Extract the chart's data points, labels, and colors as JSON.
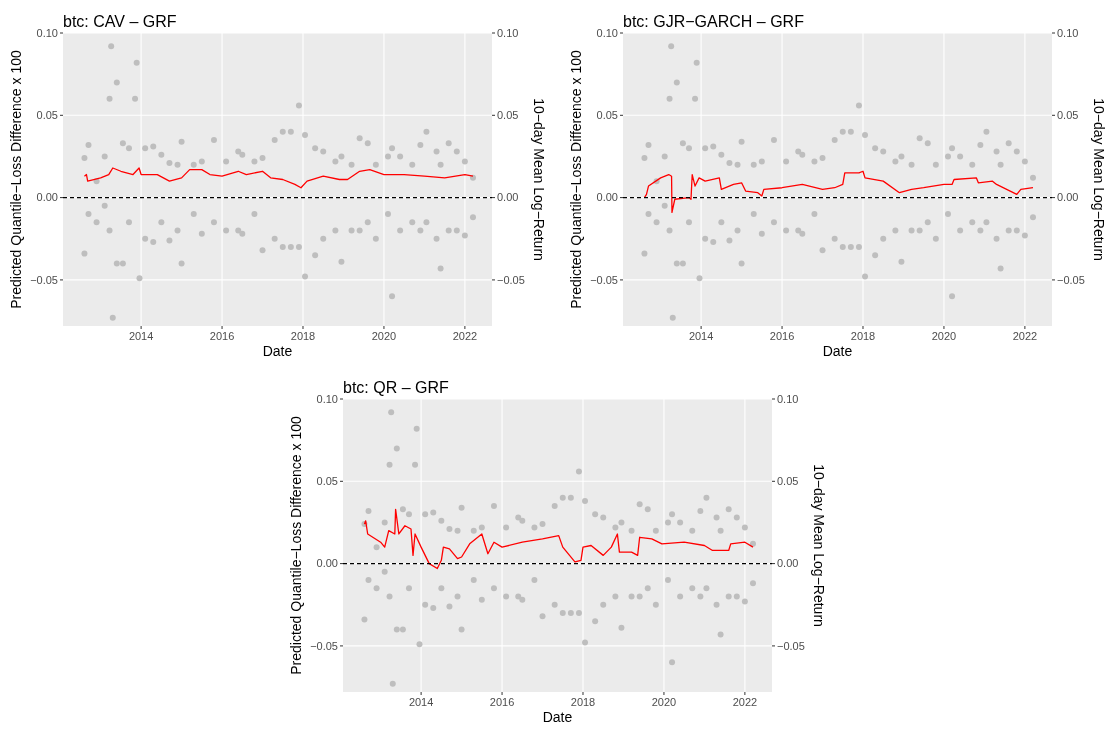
{
  "chart_data": [
    {
      "type": "line",
      "title": "btc: CAV – GRF",
      "xlabel": "Date",
      "ylabel": "Predicted Quantile−Loss Difference x 100",
      "y2label": "10−day Mean Log−Return",
      "xlim": [
        2012.07,
        2022.67
      ],
      "xticks": [
        2014,
        2016,
        2018,
        2020,
        2022
      ],
      "ylim": [
        -0.078,
        0.1
      ],
      "yticks": [
        {
          "value": -0.05,
          "label": "−0.05"
        },
        {
          "value": 0,
          "label": "0.00"
        },
        {
          "value": 0.05,
          "label": "0.05"
        },
        {
          "value": 0.1,
          "label": "0.10"
        }
      ],
      "y2lim": [
        -0.078,
        0.1
      ],
      "y2ticks": [
        {
          "value": -0.05,
          "label": "−0.05"
        },
        {
          "value": 0,
          "label": "0.00"
        },
        {
          "value": 0.05,
          "label": "0.05"
        },
        {
          "value": 0.1,
          "label": "0.10"
        }
      ],
      "grid": true,
      "ref_lines": [
        {
          "axis": "y",
          "value": 0,
          "color": "#000000",
          "line_style": "dashed"
        }
      ],
      "series": [
        {
          "type": "scatter",
          "marker": "circle",
          "color": "#bebebe",
          "x": [
            2012.6,
            2012.6,
            2012.7,
            2012.7,
            2012.9,
            2012.9,
            2013.1,
            2013.1,
            2013.22,
            2013.22,
            2013.26,
            2013.3,
            2013.4,
            2013.4,
            2013.55,
            2013.55,
            2013.7,
            2013.7,
            2013.85,
            2013.89,
            2013.96,
            2014.1,
            2014.1,
            2014.3,
            2014.3,
            2014.5,
            2014.5,
            2014.7,
            2014.7,
            2014.9,
            2014.9,
            2015.0,
            2015.0,
            2015.3,
            2015.3,
            2015.5,
            2015.5,
            2015.8,
            2015.8,
            2016.1,
            2016.1,
            2016.4,
            2016.4,
            2016.5,
            2016.5,
            2016.8,
            2016.8,
            2017.0,
            2017.0,
            2017.3,
            2017.3,
            2017.5,
            2017.5,
            2017.7,
            2017.7,
            2017.9,
            2017.9,
            2018.05,
            2018.05,
            2018.3,
            2018.3,
            2018.5,
            2018.5,
            2018.8,
            2018.8,
            2018.95,
            2018.95,
            2019.2,
            2019.2,
            2019.4,
            2019.4,
            2019.6,
            2019.6,
            2019.8,
            2019.8,
            2020.1,
            2020.1,
            2020.2,
            2020.2,
            2020.4,
            2020.4,
            2020.7,
            2020.7,
            2020.9,
            2020.9,
            2021.05,
            2021.05,
            2021.3,
            2021.3,
            2021.4,
            2021.4,
            2021.6,
            2021.6,
            2021.8,
            2021.8,
            2022.0,
            2022.0,
            2022.2,
            2022.2
          ],
          "values": [
            0.024,
            -0.034,
            0.032,
            -0.01,
            0.01,
            -0.015,
            0.025,
            -0.005,
            0.06,
            -0.02,
            0.092,
            -0.073,
            0.07,
            -0.04,
            0.033,
            -0.04,
            0.03,
            -0.015,
            0.06,
            0.082,
            -0.049,
            0.03,
            -0.025,
            0.031,
            -0.027,
            0.026,
            -0.015,
            0.021,
            -0.026,
            0.02,
            -0.02,
            0.034,
            -0.04,
            0.02,
            -0.01,
            0.022,
            -0.022,
            0.035,
            -0.015,
            0.022,
            -0.02,
            0.028,
            -0.02,
            0.026,
            -0.022,
            0.022,
            -0.01,
            0.024,
            -0.032,
            0.035,
            -0.025,
            0.04,
            -0.03,
            0.04,
            -0.03,
            0.056,
            -0.03,
            0.038,
            -0.048,
            0.03,
            -0.035,
            0.028,
            -0.025,
            0.022,
            -0.02,
            0.025,
            -0.039,
            0.02,
            -0.02,
            0.036,
            -0.02,
            0.033,
            -0.015,
            0.02,
            -0.025,
            0.025,
            -0.01,
            0.03,
            -0.06,
            0.025,
            -0.02,
            0.02,
            -0.015,
            0.032,
            -0.02,
            0.04,
            -0.015,
            0.028,
            -0.025,
            0.02,
            -0.043,
            0.033,
            -0.02,
            0.028,
            -0.02,
            0.022,
            -0.023,
            0.012,
            -0.012
          ]
        },
        {
          "color": "#ff0000",
          "x": [
            2012.6,
            2012.65,
            2012.68,
            2013.0,
            2013.2,
            2013.3,
            2013.5,
            2013.8,
            2013.95,
            2014.0,
            2014.4,
            2014.7,
            2015.0,
            2015.2,
            2015.5,
            2015.7,
            2016.0,
            2016.4,
            2016.6,
            2017.0,
            2017.2,
            2017.5,
            2017.8,
            2017.95,
            2018.1,
            2018.5,
            2018.9,
            2019.1,
            2019.4,
            2019.65,
            2020.0,
            2020.5,
            2021.0,
            2021.5,
            2022.0,
            2022.2
          ],
          "values": [
            0.013,
            0.014,
            0.01,
            0.012,
            0.014,
            0.018,
            0.016,
            0.014,
            0.018,
            0.014,
            0.014,
            0.01,
            0.012,
            0.017,
            0.017,
            0.014,
            0.013,
            0.016,
            0.014,
            0.016,
            0.012,
            0.011,
            0.008,
            0.006,
            0.01,
            0.013,
            0.011,
            0.011,
            0.016,
            0.017,
            0.014,
            0.014,
            0.013,
            0.012,
            0.014,
            0.013
          ]
        }
      ]
    },
    {
      "type": "line",
      "title": "btc: GJR−GARCH – GRF",
      "xlabel": "Date",
      "ylabel": "Predicted Quantile−Loss Difference x 100",
      "y2label": "10−day Mean Log−Return",
      "xlim": [
        2012.07,
        2022.67
      ],
      "xticks": [
        2014,
        2016,
        2018,
        2020,
        2022
      ],
      "ylim": [
        -0.078,
        0.1
      ],
      "yticks": [
        {
          "value": -0.05,
          "label": "−0.05"
        },
        {
          "value": 0,
          "label": "0.00"
        },
        {
          "value": 0.05,
          "label": "0.05"
        },
        {
          "value": 0.1,
          "label": "0.10"
        }
      ],
      "y2lim": [
        -0.078,
        0.1
      ],
      "y2ticks": [
        {
          "value": -0.05,
          "label": "−0.05"
        },
        {
          "value": 0,
          "label": "0.00"
        },
        {
          "value": 0.05,
          "label": "0.05"
        },
        {
          "value": 0.1,
          "label": "0.10"
        }
      ],
      "grid": true,
      "ref_lines": [
        {
          "axis": "y",
          "value": 0,
          "color": "#000000",
          "line_style": "dashed"
        }
      ],
      "series": [
        {
          "type": "scatter",
          "color": "#bebebe",
          "x": [
            2012.6,
            2012.6,
            2012.7,
            2012.7,
            2012.9,
            2012.9,
            2013.1,
            2013.1,
            2013.22,
            2013.22,
            2013.26,
            2013.3,
            2013.4,
            2013.4,
            2013.55,
            2013.55,
            2013.7,
            2013.7,
            2013.85,
            2013.89,
            2013.96,
            2014.1,
            2014.1,
            2014.3,
            2014.3,
            2014.5,
            2014.5,
            2014.7,
            2014.7,
            2014.9,
            2014.9,
            2015.0,
            2015.0,
            2015.3,
            2015.3,
            2015.5,
            2015.5,
            2015.8,
            2015.8,
            2016.1,
            2016.1,
            2016.4,
            2016.4,
            2016.5,
            2016.5,
            2016.8,
            2016.8,
            2017.0,
            2017.0,
            2017.3,
            2017.3,
            2017.5,
            2017.5,
            2017.7,
            2017.7,
            2017.9,
            2017.9,
            2018.05,
            2018.05,
            2018.3,
            2018.3,
            2018.5,
            2018.5,
            2018.8,
            2018.8,
            2018.95,
            2018.95,
            2019.2,
            2019.2,
            2019.4,
            2019.4,
            2019.6,
            2019.6,
            2019.8,
            2019.8,
            2020.1,
            2020.1,
            2020.2,
            2020.2,
            2020.4,
            2020.4,
            2020.7,
            2020.7,
            2020.9,
            2020.9,
            2021.05,
            2021.05,
            2021.3,
            2021.3,
            2021.4,
            2021.4,
            2021.6,
            2021.6,
            2021.8,
            2021.8,
            2022.0,
            2022.0,
            2022.2,
            2022.2
          ],
          "values": [
            0.024,
            -0.034,
            0.032,
            -0.01,
            0.01,
            -0.015,
            0.025,
            -0.005,
            0.06,
            -0.02,
            0.092,
            -0.073,
            0.07,
            -0.04,
            0.033,
            -0.04,
            0.03,
            -0.015,
            0.06,
            0.082,
            -0.049,
            0.03,
            -0.025,
            0.031,
            -0.027,
            0.026,
            -0.015,
            0.021,
            -0.026,
            0.02,
            -0.02,
            0.034,
            -0.04,
            0.02,
            -0.01,
            0.022,
            -0.022,
            0.035,
            -0.015,
            0.022,
            -0.02,
            0.028,
            -0.02,
            0.026,
            -0.022,
            0.022,
            -0.01,
            0.024,
            -0.032,
            0.035,
            -0.025,
            0.04,
            -0.03,
            0.04,
            -0.03,
            0.056,
            -0.03,
            0.038,
            -0.048,
            0.03,
            -0.035,
            0.028,
            -0.025,
            0.022,
            -0.02,
            0.025,
            -0.039,
            0.02,
            -0.02,
            0.036,
            -0.02,
            0.033,
            -0.015,
            0.02,
            -0.025,
            0.025,
            -0.01,
            0.03,
            -0.06,
            0.025,
            -0.02,
            0.02,
            -0.015,
            0.032,
            -0.02,
            0.04,
            -0.015,
            0.028,
            -0.025,
            0.02,
            -0.043,
            0.033,
            -0.02,
            0.028,
            -0.02,
            0.022,
            -0.023,
            0.012,
            -0.012
          ]
        },
        {
          "color": "#ff0000",
          "x": [
            2012.6,
            2012.65,
            2012.7,
            2013.0,
            2013.2,
            2013.27,
            2013.28,
            2013.35,
            2013.7,
            2013.75,
            2013.78,
            2013.85,
            2013.95,
            2014.1,
            2014.45,
            2014.5,
            2014.8,
            2015.0,
            2015.1,
            2015.4,
            2015.5,
            2015.55,
            2016.0,
            2016.5,
            2017.0,
            2017.3,
            2017.5,
            2017.55,
            2017.9,
            2018.0,
            2018.05,
            2018.5,
            2018.9,
            2019.2,
            2019.5,
            2020.0,
            2020.2,
            2020.25,
            2020.8,
            2020.85,
            2021.2,
            2021.3,
            2021.8,
            2021.9,
            2022.2
          ],
          "values": [
            0.0,
            0.002,
            0.007,
            0.012,
            0.014,
            0.013,
            -0.009,
            -0.001,
            0.0,
            -0.001,
            0.014,
            0.007,
            0.012,
            0.01,
            0.012,
            0.005,
            0.008,
            0.009,
            0.004,
            0.003,
            0.001,
            0.005,
            0.006,
            0.008,
            0.005,
            0.006,
            0.008,
            0.015,
            0.015,
            0.016,
            0.012,
            0.01,
            0.003,
            0.005,
            0.006,
            0.008,
            0.008,
            0.011,
            0.012,
            0.009,
            0.01,
            0.008,
            0.002,
            0.005,
            0.006
          ]
        }
      ]
    },
    {
      "type": "line",
      "title": "btc: QR – GRF",
      "xlabel": "Date",
      "ylabel": "Predicted Quantile−Loss Difference x 100",
      "y2label": "10−day Mean Log−Return",
      "xlim": [
        2012.07,
        2022.67
      ],
      "xticks": [
        2014,
        2016,
        2018,
        2020,
        2022
      ],
      "ylim": [
        -0.078,
        0.1
      ],
      "yticks": [
        {
          "value": -0.05,
          "label": "−0.05"
        },
        {
          "value": 0,
          "label": "0.00"
        },
        {
          "value": 0.05,
          "label": "0.05"
        },
        {
          "value": 0.1,
          "label": "0.10"
        }
      ],
      "y2lim": [
        -0.078,
        0.1
      ],
      "y2ticks": [
        {
          "value": -0.05,
          "label": "−0.05"
        },
        {
          "value": 0,
          "label": "0.00"
        },
        {
          "value": 0.05,
          "label": "0.05"
        },
        {
          "value": 0.1,
          "label": "0.10"
        }
      ],
      "grid": true,
      "ref_lines": [
        {
          "axis": "y",
          "value": 0,
          "color": "#000000",
          "line_style": "dashed"
        }
      ],
      "series": [
        {
          "type": "scatter",
          "color": "#bebebe",
          "x": [
            2012.6,
            2012.6,
            2012.7,
            2012.7,
            2012.9,
            2012.9,
            2013.1,
            2013.1,
            2013.22,
            2013.22,
            2013.26,
            2013.3,
            2013.4,
            2013.4,
            2013.55,
            2013.55,
            2013.7,
            2013.7,
            2013.85,
            2013.89,
            2013.96,
            2014.1,
            2014.1,
            2014.3,
            2014.3,
            2014.5,
            2014.5,
            2014.7,
            2014.7,
            2014.9,
            2014.9,
            2015.0,
            2015.0,
            2015.3,
            2015.3,
            2015.5,
            2015.5,
            2015.8,
            2015.8,
            2016.1,
            2016.1,
            2016.4,
            2016.4,
            2016.5,
            2016.5,
            2016.8,
            2016.8,
            2017.0,
            2017.0,
            2017.3,
            2017.3,
            2017.5,
            2017.5,
            2017.7,
            2017.7,
            2017.9,
            2017.9,
            2018.05,
            2018.05,
            2018.3,
            2018.3,
            2018.5,
            2018.5,
            2018.8,
            2018.8,
            2018.95,
            2018.95,
            2019.2,
            2019.2,
            2019.4,
            2019.4,
            2019.6,
            2019.6,
            2019.8,
            2019.8,
            2020.1,
            2020.1,
            2020.2,
            2020.2,
            2020.4,
            2020.4,
            2020.7,
            2020.7,
            2020.9,
            2020.9,
            2021.05,
            2021.05,
            2021.3,
            2021.3,
            2021.4,
            2021.4,
            2021.6,
            2021.6,
            2021.8,
            2021.8,
            2022.0,
            2022.0,
            2022.2,
            2022.2
          ],
          "values": [
            0.024,
            -0.034,
            0.032,
            -0.01,
            0.01,
            -0.015,
            0.025,
            -0.005,
            0.06,
            -0.02,
            0.092,
            -0.073,
            0.07,
            -0.04,
            0.033,
            -0.04,
            0.03,
            -0.015,
            0.06,
            0.082,
            -0.049,
            0.03,
            -0.025,
            0.031,
            -0.027,
            0.026,
            -0.015,
            0.021,
            -0.026,
            0.02,
            -0.02,
            0.034,
            -0.04,
            0.02,
            -0.01,
            0.022,
            -0.022,
            0.035,
            -0.015,
            0.022,
            -0.02,
            0.028,
            -0.02,
            0.026,
            -0.022,
            0.022,
            -0.01,
            0.024,
            -0.032,
            0.035,
            -0.025,
            0.04,
            -0.03,
            0.04,
            -0.03,
            0.056,
            -0.03,
            0.038,
            -0.048,
            0.03,
            -0.035,
            0.028,
            -0.025,
            0.022,
            -0.02,
            0.025,
            -0.039,
            0.02,
            -0.02,
            0.036,
            -0.02,
            0.033,
            -0.015,
            0.02,
            -0.025,
            0.025,
            -0.01,
            0.03,
            -0.06,
            0.025,
            -0.02,
            0.02,
            -0.015,
            0.032,
            -0.02,
            0.04,
            -0.015,
            0.028,
            -0.025,
            0.02,
            -0.043,
            0.033,
            -0.02,
            0.028,
            -0.02,
            0.022,
            -0.023,
            0.012,
            -0.012
          ]
        },
        {
          "color": "#ff0000",
          "x": [
            2012.6,
            2012.63,
            2012.68,
            2013.0,
            2013.1,
            2013.2,
            2013.35,
            2013.37,
            2013.45,
            2013.6,
            2013.75,
            2013.8,
            2013.85,
            2014.0,
            2014.2,
            2014.4,
            2014.5,
            2014.55,
            2014.7,
            2014.9,
            2015.0,
            2015.2,
            2015.5,
            2015.65,
            2015.8,
            2016.0,
            2016.5,
            2017.0,
            2017.4,
            2017.5,
            2017.8,
            2017.95,
            2018.0,
            2018.2,
            2018.5,
            2018.7,
            2018.85,
            2018.9,
            2019.2,
            2019.35,
            2019.4,
            2019.7,
            2019.95,
            2020.5,
            2021.0,
            2021.2,
            2021.6,
            2021.65,
            2022.0,
            2022.2
          ],
          "values": [
            0.024,
            0.026,
            0.018,
            0.013,
            0.01,
            0.02,
            0.018,
            0.033,
            0.018,
            0.023,
            0.021,
            0.005,
            0.018,
            0.01,
            0.0,
            -0.003,
            0.002,
            0.01,
            0.009,
            0.003,
            0.004,
            0.012,
            0.018,
            0.006,
            0.013,
            0.01,
            0.013,
            0.015,
            0.017,
            0.01,
            0.001,
            0.002,
            0.01,
            0.011,
            0.005,
            0.01,
            0.018,
            0.007,
            0.007,
            0.005,
            0.016,
            0.015,
            0.012,
            0.013,
            0.011,
            0.008,
            0.008,
            0.012,
            0.013,
            0.01
          ]
        }
      ]
    }
  ]
}
